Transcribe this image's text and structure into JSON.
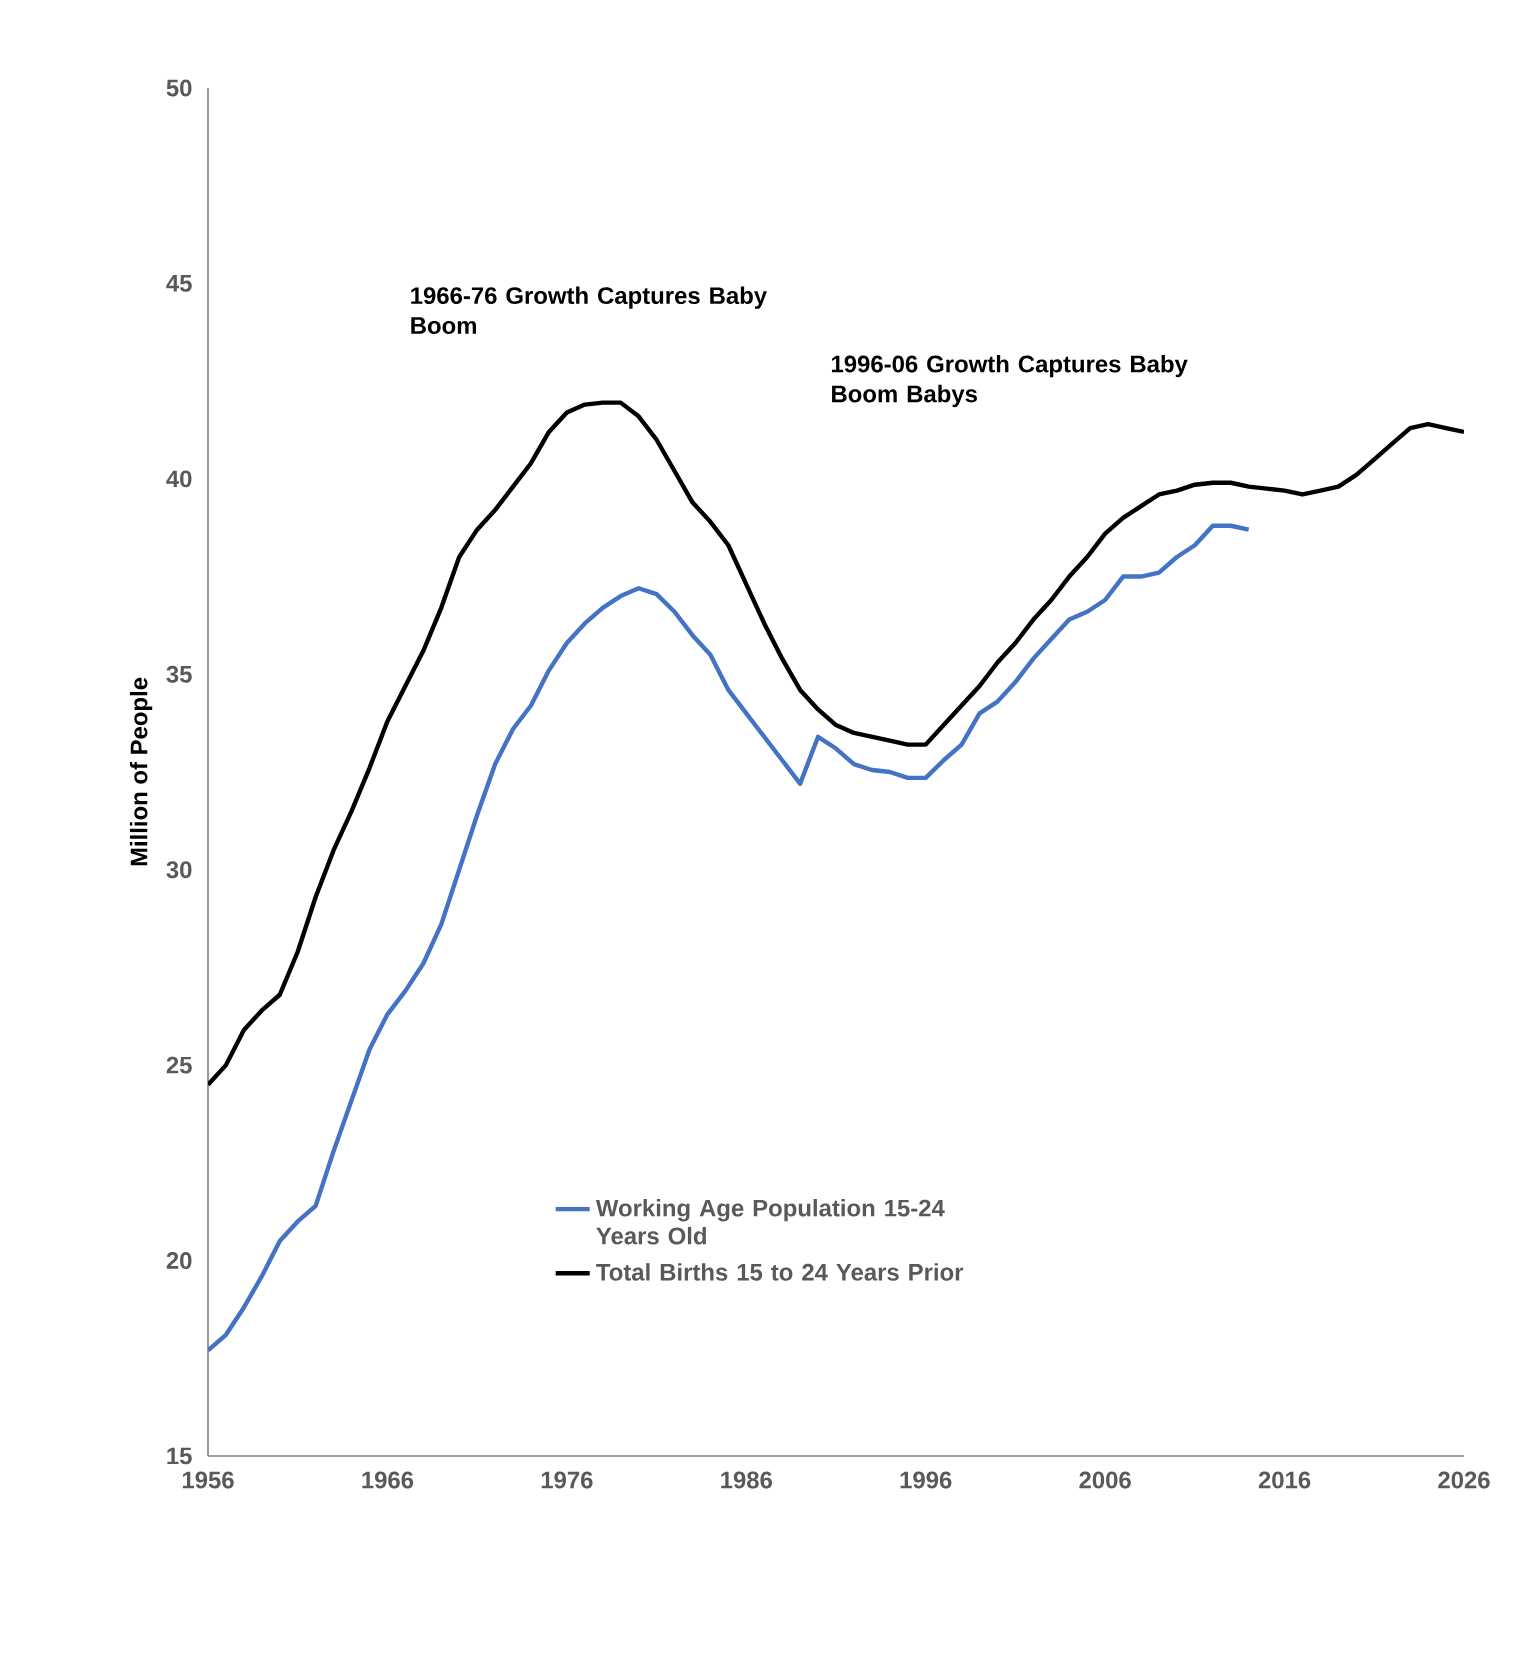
{
  "chart_data": {
    "type": "line",
    "ylabel": "Million of People",
    "xlim": [
      1956,
      2026
    ],
    "xticks": [
      1956,
      1966,
      1976,
      1986,
      1996,
      2006,
      2016,
      2026
    ],
    "ylim": [
      15,
      50
    ],
    "yticks": [
      15,
      20,
      25,
      30,
      35,
      40,
      45,
      50
    ],
    "grid": false,
    "legend": "bottom",
    "marker": "none",
    "line_style": "solid",
    "annotations": [
      "1966-76 Growth Captures Baby Boom",
      "1996-06 Growth Captures Baby Boom Babys"
    ],
    "series": [
      {
        "name": "Working Age Population 15-24 Years Old",
        "color": "#4472c4",
        "x": [
          1956,
          1957,
          1958,
          1959,
          1960,
          1961,
          1962,
          1963,
          1964,
          1965,
          1966,
          1967,
          1968,
          1969,
          1970,
          1971,
          1972,
          1973,
          1974,
          1975,
          1976,
          1977,
          1978,
          1979,
          1980,
          1981,
          1982,
          1983,
          1984,
          1985,
          1986,
          1987,
          1988,
          1989,
          1990,
          1991,
          1992,
          1993,
          1994,
          1995,
          1996,
          1997,
          1998,
          1999,
          2000,
          2001,
          2002,
          2003,
          2004,
          2005,
          2006,
          2007,
          2008,
          2009,
          2010,
          2011,
          2012,
          2013,
          2014
        ],
        "values": [
          17.7,
          18.1,
          18.8,
          19.6,
          20.5,
          21.0,
          21.4,
          22.8,
          24.1,
          25.4,
          26.3,
          26.9,
          27.6,
          28.6,
          30.0,
          31.4,
          32.7,
          33.6,
          34.2,
          35.1,
          35.8,
          36.3,
          36.7,
          37.0,
          37.2,
          37.05,
          36.6,
          36.0,
          35.5,
          34.6,
          34.0,
          33.4,
          32.8,
          32.2,
          33.4,
          33.1,
          32.7,
          32.55,
          32.5,
          32.35,
          32.35,
          32.8,
          33.2,
          34.0,
          34.3,
          34.8,
          35.4,
          35.9,
          36.4,
          36.6,
          36.9,
          37.5,
          37.5,
          37.6,
          38.0,
          38.3,
          38.8,
          38.8,
          38.7
        ]
      },
      {
        "name": "Total Births 15 to 24 Years Prior",
        "color": "#000000",
        "x": [
          1956,
          1957,
          1958,
          1959,
          1960,
          1961,
          1962,
          1963,
          1964,
          1965,
          1966,
          1967,
          1968,
          1969,
          1970,
          1971,
          1972,
          1973,
          1974,
          1975,
          1976,
          1977,
          1978,
          1979,
          1980,
          1981,
          1982,
          1983,
          1984,
          1985,
          1986,
          1987,
          1988,
          1989,
          1990,
          1991,
          1992,
          1993,
          1994,
          1995,
          1996,
          1997,
          1998,
          1999,
          2000,
          2001,
          2002,
          2003,
          2004,
          2005,
          2006,
          2007,
          2008,
          2009,
          2010,
          2011,
          2012,
          2013,
          2014,
          2015,
          2016,
          2017,
          2018,
          2019,
          2020,
          2021,
          2022,
          2023,
          2024,
          2025,
          2026
        ],
        "values": [
          24.5,
          25.0,
          25.9,
          26.4,
          26.8,
          27.9,
          29.3,
          30.5,
          31.5,
          32.6,
          33.8,
          34.7,
          35.6,
          36.7,
          38.0,
          38.7,
          39.2,
          39.8,
          40.4,
          41.2,
          41.7,
          41.9,
          41.95,
          41.95,
          41.6,
          41.0,
          40.2,
          39.4,
          38.9,
          38.3,
          37.3,
          36.3,
          35.4,
          34.6,
          34.1,
          33.7,
          33.5,
          33.4,
          33.3,
          33.2,
          33.2,
          33.7,
          34.2,
          34.7,
          35.3,
          35.8,
          36.4,
          36.9,
          37.5,
          38.0,
          38.6,
          39.0,
          39.3,
          39.6,
          39.7,
          39.85,
          39.9,
          39.9,
          39.8,
          39.75,
          39.7,
          39.6,
          39.7,
          39.8,
          40.1,
          40.5,
          40.9,
          41.3,
          41.4,
          41.3,
          41.2
        ]
      }
    ]
  }
}
